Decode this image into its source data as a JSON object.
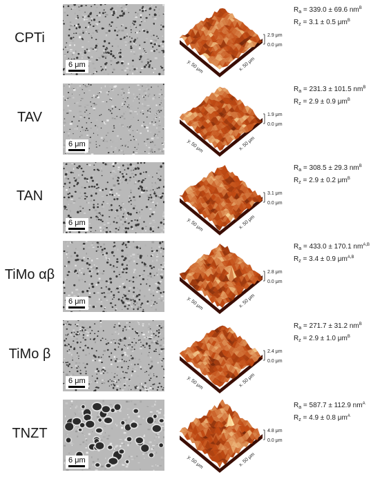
{
  "rows": [
    {
      "label": "CPTi",
      "scale": "6 μm",
      "zmax": "2.9 μm",
      "zmin": "0.0 μm",
      "yaxis": "y. 50 μm",
      "xaxis": "x. 50 μm",
      "ra_value": " = 339.0 ± 69.6 nm",
      "ra_sup": "B",
      "rz_value": " = 3.1 ± 0.5 μm",
      "rz_sup": "B"
    },
    {
      "label": "TAV",
      "scale": "6 μm",
      "zmax": "1.9 μm",
      "zmin": "0.0 μm",
      "yaxis": "y. 50 μm",
      "xaxis": "x. 50 μm",
      "ra_value": " = 231.3 ± 101.5 nm",
      "ra_sup": "B",
      "rz_value": " = 2.9 ± 0.9 μm",
      "rz_sup": "B"
    },
    {
      "label": "TAN",
      "scale": "6 μm",
      "zmax": "3.1 μm",
      "zmin": "0.0 μm",
      "yaxis": "y. 50 μm",
      "xaxis": "x. 50 μm",
      "ra_value": " = 308.5 ± 29.3 nm",
      "ra_sup": "B",
      "rz_value": " = 2.9 ± 0.2 μm",
      "rz_sup": "B"
    },
    {
      "label": "TiMo αβ",
      "scale": "6 μm",
      "zmax": "2.8 μm",
      "zmin": "0.0 μm",
      "yaxis": "y. 50 μm",
      "xaxis": "x. 50 μm",
      "ra_value": " = 433.0 ± 170.1 nm",
      "ra_sup": "A,B",
      "rz_value": " = 3.4 ± 0.9 μm",
      "rz_sup": "A,B"
    },
    {
      "label": "TiMo β",
      "scale": "6 μm",
      "zmax": "2.4 μm",
      "zmin": "0.0 μm",
      "yaxis": "y. 50 μm",
      "xaxis": "x. 50 μm",
      "ra_value": " = 271.7 ± 31.2 nm",
      "ra_sup": "B",
      "rz_value": " = 2.9 ± 1.0 μm",
      "rz_sup": "B"
    },
    {
      "label": "TNZT",
      "scale": "6 μm",
      "zmax": "4.8 μm",
      "zmin": "0.0 μm",
      "yaxis": "y. 50 μm",
      "xaxis": "x. 50 μm",
      "ra_value": " = 587.7 ± 112.9 nm",
      "ra_sup": "A",
      "rz_value": " = 4.9 ± 0.8 μm",
      "rz_sup": "A"
    }
  ],
  "ra_symbol": "R",
  "ra_sub": "a",
  "rz_symbol": "R",
  "rz_sub": "z",
  "colors": {
    "afm_low": "#3a0d03",
    "afm_mid": "#c24a12",
    "afm_high": "#ffe6a8",
    "sem_bg": "#b9b9b9"
  }
}
